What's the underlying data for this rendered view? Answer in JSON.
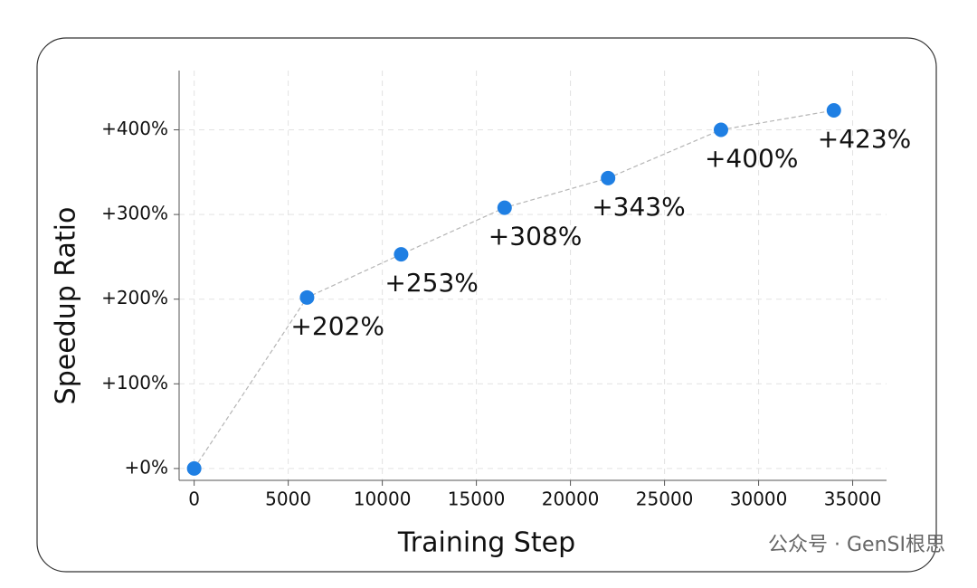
{
  "chart_data": {
    "type": "line",
    "x_label": "Training Step",
    "y_label": "Speedup Ratio",
    "x": [
      0,
      6000,
      11000,
      16500,
      22000,
      28000,
      34000
    ],
    "values": [
      0,
      202,
      253,
      308,
      343,
      400,
      423
    ],
    "value_labels": [
      null,
      "+202%",
      "+253%",
      "+308%",
      "+343%",
      "+400%",
      "+423%"
    ],
    "color": "#1f7fe3",
    "line_color": "#b5b5b5",
    "xlim": [
      -800,
      36800
    ],
    "ylim": [
      -14,
      470
    ],
    "xticks": [
      0,
      5000,
      10000,
      15000,
      20000,
      25000,
      30000,
      35000
    ],
    "yticks": [
      {
        "value": 0,
        "label": "+0%"
      },
      {
        "value": 100,
        "label": "+100%"
      },
      {
        "value": 200,
        "label": "+200%"
      },
      {
        "value": 300,
        "label": "+300%"
      },
      {
        "value": 400,
        "label": "+400%"
      }
    ],
    "grid": true
  },
  "watermark": "公众号 · GenSI根思"
}
